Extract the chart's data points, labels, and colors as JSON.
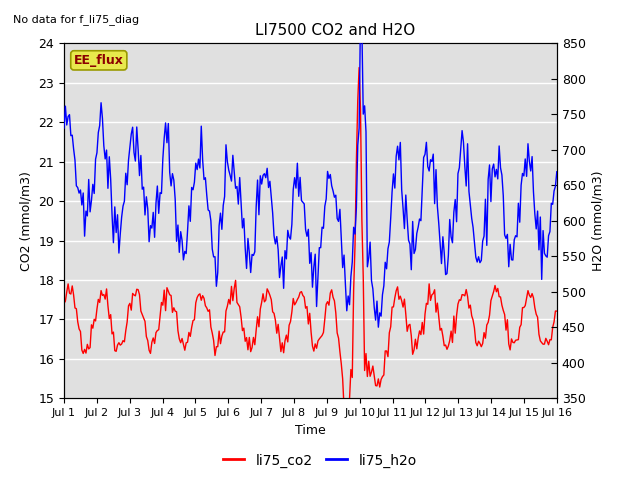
{
  "title": "LI7500 CO2 and H2O",
  "top_left_text": "No data for f_li75_diag",
  "xlabel": "Time",
  "ylabel_left": "CO2 (mmol/m3)",
  "ylabel_right": "H2O (mmol/m3)",
  "ylim_left": [
    15.0,
    24.0
  ],
  "ylim_right": [
    350,
    850
  ],
  "xtick_labels": [
    "Jul 1",
    "Jul 2",
    "Jul 3",
    "Jul 4",
    "Jul 5",
    "Jul 6",
    "Jul 7",
    "Jul 8",
    "Jul 9",
    "Jul 10",
    "Jul 11",
    "Jul 12",
    "Jul 13",
    "Jul 14",
    "Jul 15",
    "Jul 16"
  ],
  "yticks_left": [
    15.0,
    16.0,
    17.0,
    18.0,
    19.0,
    20.0,
    21.0,
    22.0,
    23.0,
    24.0
  ],
  "yticks_right": [
    350,
    400,
    450,
    500,
    550,
    600,
    650,
    700,
    750,
    800,
    850
  ],
  "ee_flux_box_color": "#e8e84c",
  "ee_flux_text_color": "#8b0000",
  "background_color": "#ffffff",
  "plot_bg_color": "#e0e0e0",
  "co2_color": "#ff0000",
  "h2o_color": "#0000ff",
  "grid_color": "#ffffff",
  "legend_co2": "li75_co2",
  "legend_h2o": "li75_h2o",
  "n_points": 360,
  "title_fontsize": 11,
  "axis_label_fontsize": 9,
  "tick_fontsize": 9
}
